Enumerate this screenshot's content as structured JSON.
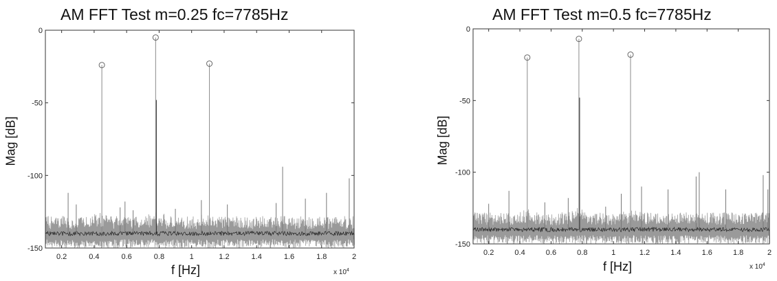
{
  "chart_data": [
    {
      "type": "line",
      "title": "AM FFT Test m=0.25 fc=7785Hz",
      "xlabel": "f [Hz]",
      "ylabel": "Mag [dB]",
      "x_exponent_label": "x 10",
      "x_exponent_power": "4",
      "xlim": [
        0.1,
        2.0
      ],
      "ylim": [
        -150,
        0
      ],
      "xticks": [
        "0.2",
        "0.4",
        "0.6",
        "0.8",
        "1",
        "1.2",
        "1.4",
        "1.6",
        "1.8",
        "2"
      ],
      "yticks": [
        "0",
        "-50",
        "-100",
        "-150"
      ],
      "grid": false,
      "noise_floor_db": -140,
      "peaks": [
        {
          "x": 0.4475,
          "y": -24
        },
        {
          "x": 0.7785,
          "y": -5
        },
        {
          "x": 1.1095,
          "y": -23
        }
      ],
      "spurs": [
        {
          "x": 0.24,
          "y": -112
        },
        {
          "x": 0.29,
          "y": -120
        },
        {
          "x": 0.56,
          "y": -122
        },
        {
          "x": 0.59,
          "y": -118
        },
        {
          "x": 0.64,
          "y": -124
        },
        {
          "x": 0.9,
          "y": -123
        },
        {
          "x": 1.06,
          "y": -117
        },
        {
          "x": 1.22,
          "y": -120
        },
        {
          "x": 1.52,
          "y": -119
        },
        {
          "x": 1.56,
          "y": -94
        },
        {
          "x": 1.7,
          "y": -116
        },
        {
          "x": 1.83,
          "y": -112
        },
        {
          "x": 1.97,
          "y": -102
        }
      ],
      "carrier_inner_dip_db": -48
    },
    {
      "type": "line",
      "title": "AM FFT Test m=0.5 fc=7785Hz",
      "xlabel": "f [Hz]",
      "ylabel": "Mag [dB]",
      "x_exponent_label": "x 10",
      "x_exponent_power": "4",
      "xlim": [
        0.1,
        2.0
      ],
      "ylim": [
        -150,
        0
      ],
      "xticks": [
        "0.2",
        "0.4",
        "0.6",
        "0.8",
        "1",
        "1.2",
        "1.4",
        "1.6",
        "1.8",
        "2"
      ],
      "yticks": [
        "0",
        "-50",
        "-100",
        "-150"
      ],
      "grid": false,
      "noise_floor_db": -140,
      "peaks": [
        {
          "x": 0.4475,
          "y": -20
        },
        {
          "x": 0.7785,
          "y": -7
        },
        {
          "x": 1.1095,
          "y": -18
        }
      ],
      "spurs": [
        {
          "x": 0.2,
          "y": -122
        },
        {
          "x": 0.33,
          "y": -113
        },
        {
          "x": 0.56,
          "y": -121
        },
        {
          "x": 0.71,
          "y": -118
        },
        {
          "x": 0.95,
          "y": -124
        },
        {
          "x": 1.05,
          "y": -115
        },
        {
          "x": 1.18,
          "y": -110
        },
        {
          "x": 1.35,
          "y": -112
        },
        {
          "x": 1.53,
          "y": -103
        },
        {
          "x": 1.55,
          "y": -100
        },
        {
          "x": 1.72,
          "y": -112
        },
        {
          "x": 1.96,
          "y": -102
        },
        {
          "x": 1.99,
          "y": -112
        }
      ],
      "carrier_inner_dip_db": -48
    }
  ]
}
